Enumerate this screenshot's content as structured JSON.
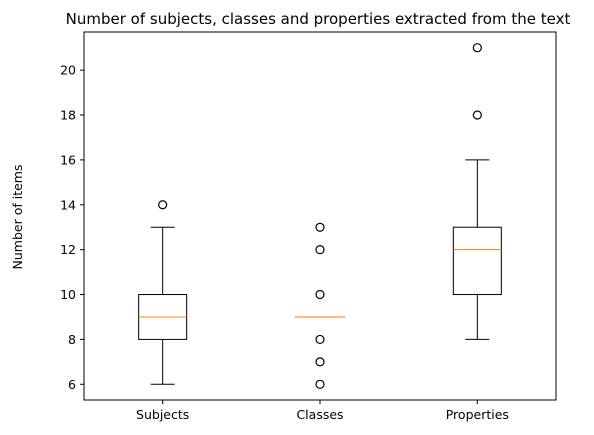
{
  "chart_data": {
    "type": "boxplot",
    "title": "Number of subjects, classes and properties extracted from the text",
    "xlabel": "",
    "ylabel": "Number of items",
    "ylim": [
      5.3,
      21.7
    ],
    "yticks": [
      "6",
      "8",
      "10",
      "12",
      "14",
      "16",
      "18",
      "20"
    ],
    "categories": [
      "Subjects",
      "Classes",
      "Properties"
    ],
    "boxes": [
      {
        "category": "Subjects",
        "whisker_low": 6,
        "q1": 8,
        "median": 9,
        "q3": 10,
        "whisker_high": 13,
        "outliers": [
          14
        ]
      },
      {
        "category": "Classes",
        "whisker_low": 9,
        "q1": 9,
        "median": 9,
        "q3": 9,
        "whisker_high": 9,
        "outliers": [
          6,
          7,
          8,
          10,
          12,
          13
        ]
      },
      {
        "category": "Properties",
        "whisker_low": 8,
        "q1": 10,
        "median": 12,
        "q3": 13,
        "whisker_high": 16,
        "outliers": [
          18,
          21
        ]
      }
    ],
    "grid": false,
    "colors": {
      "box": "#000000",
      "median": "#ff7f0e",
      "outlier": "#000000"
    }
  }
}
